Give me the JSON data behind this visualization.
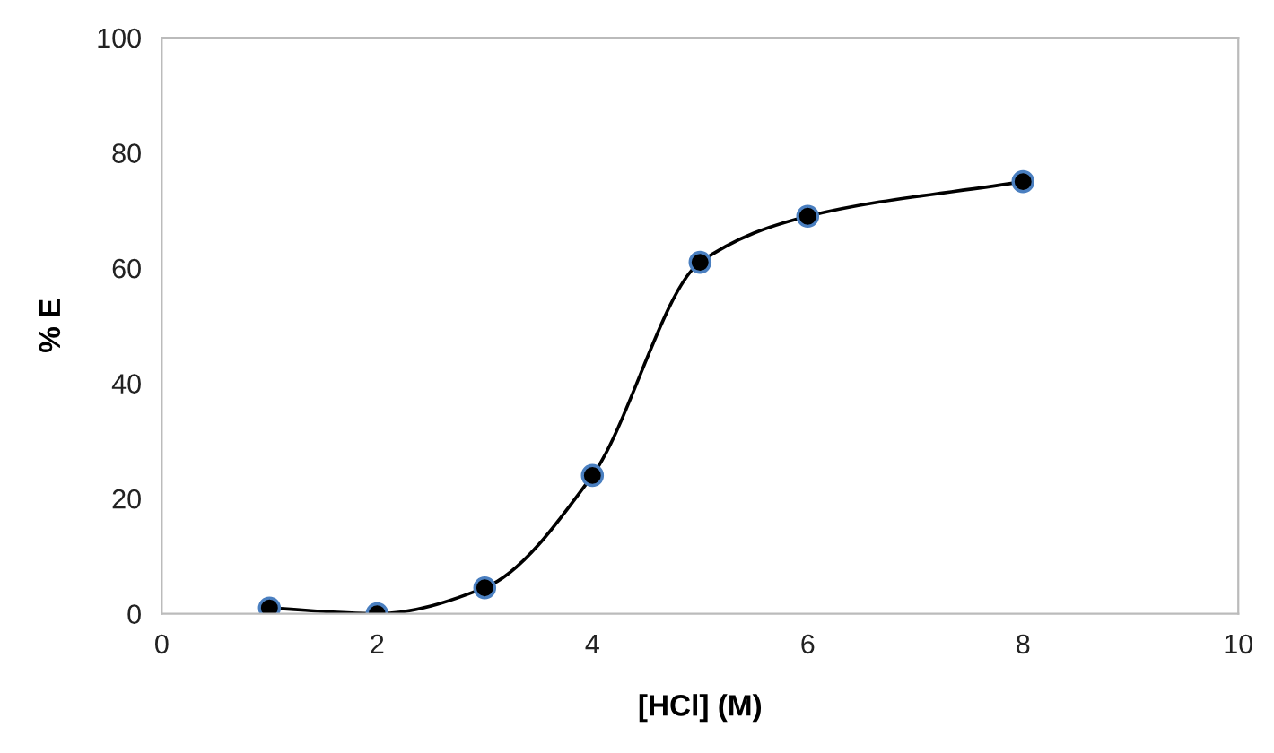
{
  "chart_data": {
    "type": "line",
    "xlabel": "[HCl] (M)",
    "ylabel": "% E",
    "x": [
      1,
      2,
      3,
      4,
      5,
      6,
      8
    ],
    "series": [
      {
        "color": "#000000",
        "values": [
          1,
          0,
          4.5,
          24,
          61,
          69,
          75
        ]
      }
    ],
    "marker": "circle",
    "line_style": "solid",
    "grid": false,
    "legend": false,
    "xlim": [
      0,
      10
    ],
    "xticks": [
      0,
      2,
      4,
      6,
      8,
      10
    ],
    "ylim": [
      0,
      100
    ],
    "yticks": [
      0,
      20,
      40,
      60,
      80,
      100
    ]
  }
}
